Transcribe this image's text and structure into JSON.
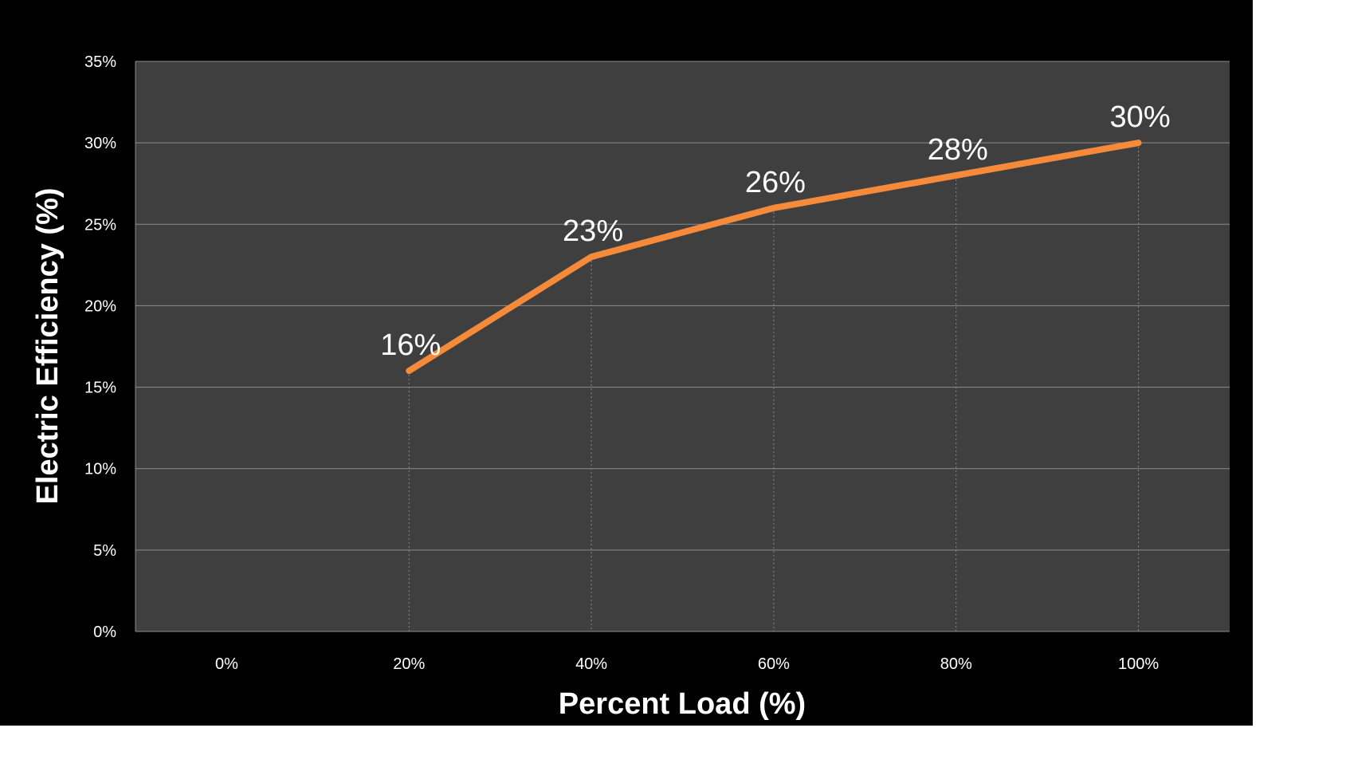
{
  "chart_data": {
    "type": "line",
    "title": "",
    "xlabel": "Percent Load (%)",
    "ylabel": "Electric Efficiency (%)",
    "categories": [
      "0%",
      "20%",
      "40%",
      "60%",
      "80%",
      "100%"
    ],
    "x": [
      0,
      20,
      40,
      60,
      80,
      100
    ],
    "series": [
      {
        "values": [
          null,
          16,
          23,
          26,
          28,
          30
        ],
        "data_labels": [
          "",
          "16%",
          "23%",
          "26%",
          "28%",
          "30%"
        ],
        "color": "#f48a3a"
      }
    ],
    "ylim": [
      0,
      35
    ],
    "yticks": [
      0,
      5,
      10,
      15,
      20,
      25,
      30,
      35
    ],
    "ytick_labels": [
      "0%",
      "5%",
      "10%",
      "15%",
      "20%",
      "25%",
      "30%",
      "35%"
    ],
    "grid": true,
    "drop_lines": true,
    "legend": "none"
  },
  "colors": {
    "background": "#000000",
    "plot_area": "#3f3f3f",
    "gridline": "#8c8c8c",
    "text": "#ffffff",
    "series": "#f48a3a"
  }
}
